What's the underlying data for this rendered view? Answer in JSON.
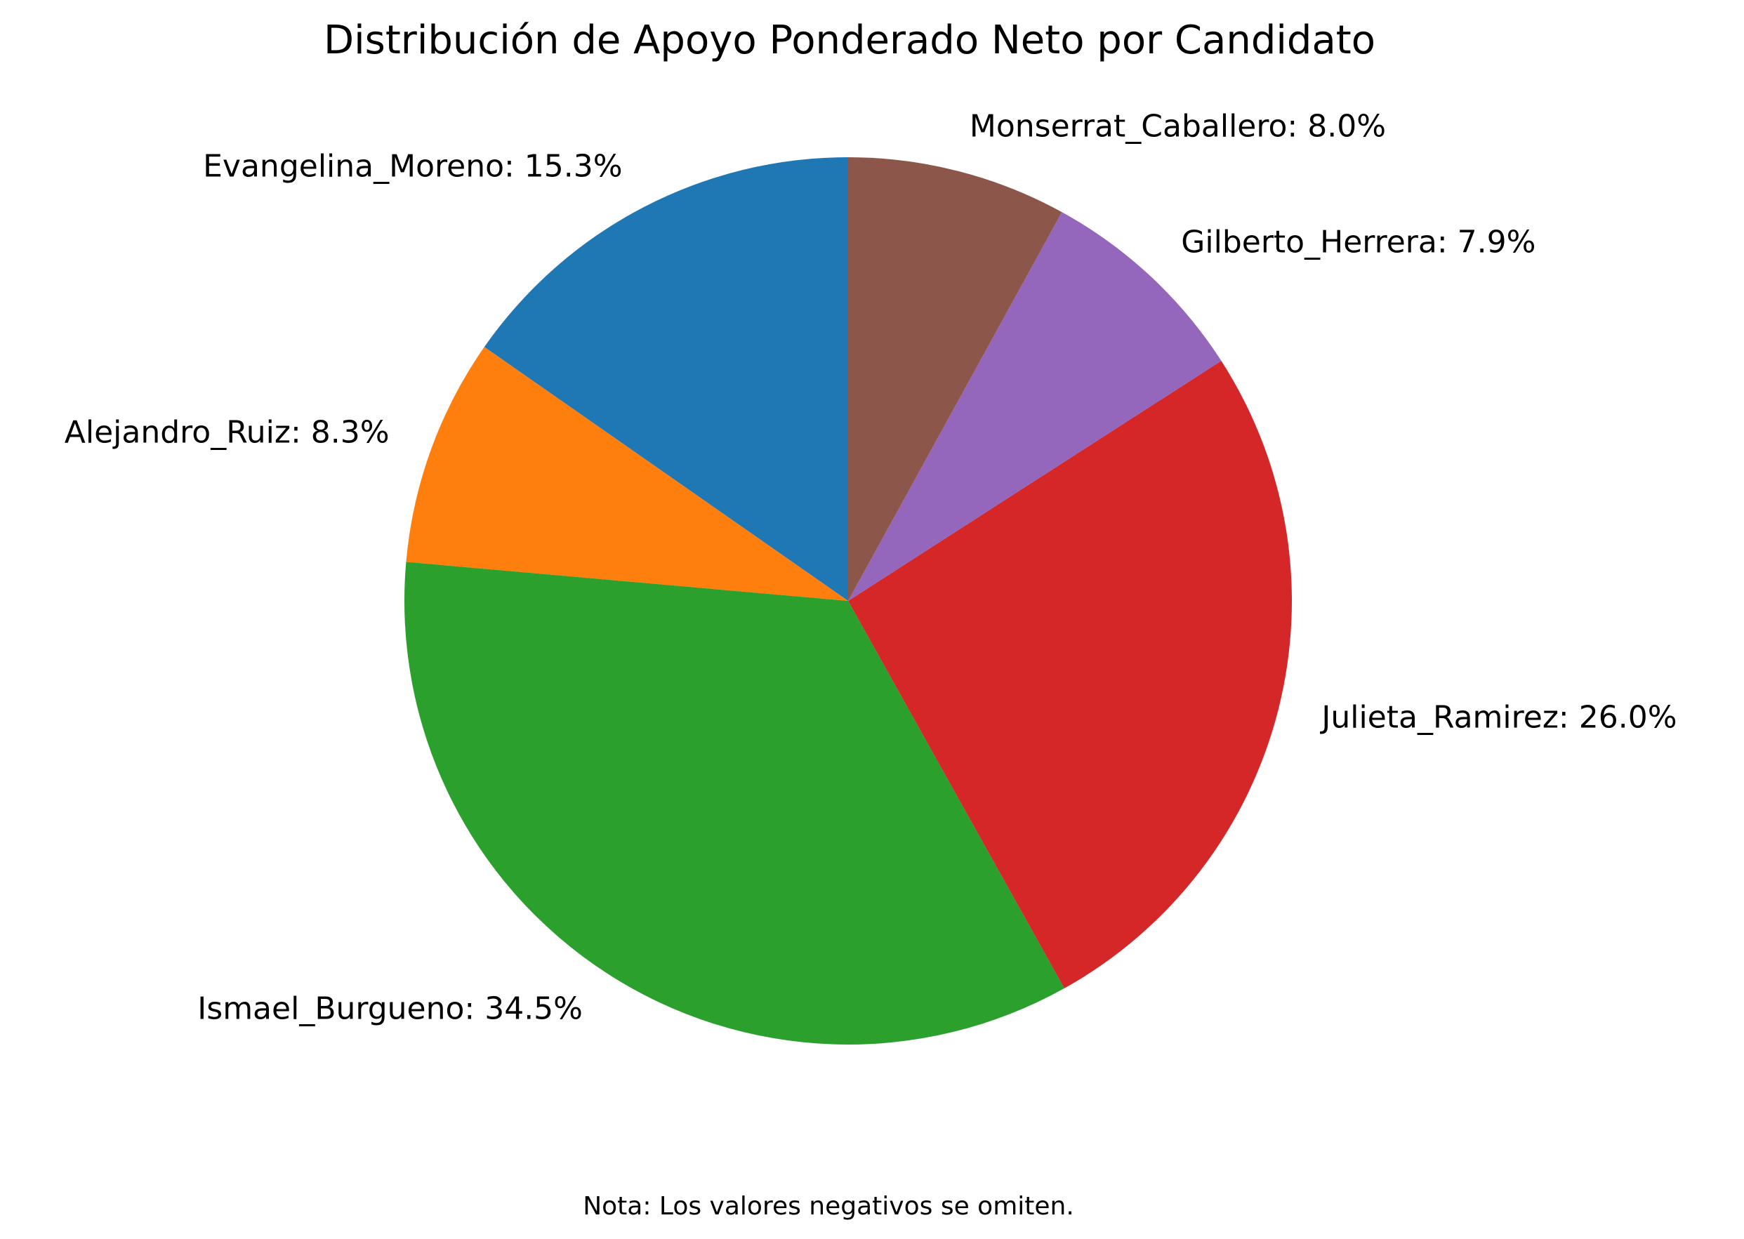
{
  "chart_data": {
    "type": "pie",
    "title": "Distribución de Apoyo Ponderado Neto por Candidato",
    "note": "Nota: Los valores negativos se omiten.",
    "start_angle_deg": 90,
    "direction": "counterclockwise",
    "legend": "none",
    "slices": [
      {
        "label": "Evangelina_Moreno",
        "value": 15.3,
        "text": "Evangelina_Moreno: 15.3%",
        "color": "#1f77b4"
      },
      {
        "label": "Alejandro_Ruiz",
        "value": 8.3,
        "text": "Alejandro_Ruiz: 8.3%",
        "color": "#ff7f0e"
      },
      {
        "label": "Ismael_Burgueno",
        "value": 34.5,
        "text": "Ismael_Burgueno: 34.5%",
        "color": "#2ca02c"
      },
      {
        "label": "Julieta_Ramirez",
        "value": 26.0,
        "text": "Julieta_Ramirez: 26.0%",
        "color": "#d62728"
      },
      {
        "label": "Gilberto_Herrera",
        "value": 7.9,
        "text": "Gilberto_Herrera: 7.9%",
        "color": "#9467bd"
      },
      {
        "label": "Monserrat_Caballero",
        "value": 8.0,
        "text": "Monserrat_Caballero: 8.0%",
        "color": "#8c564b"
      }
    ]
  }
}
